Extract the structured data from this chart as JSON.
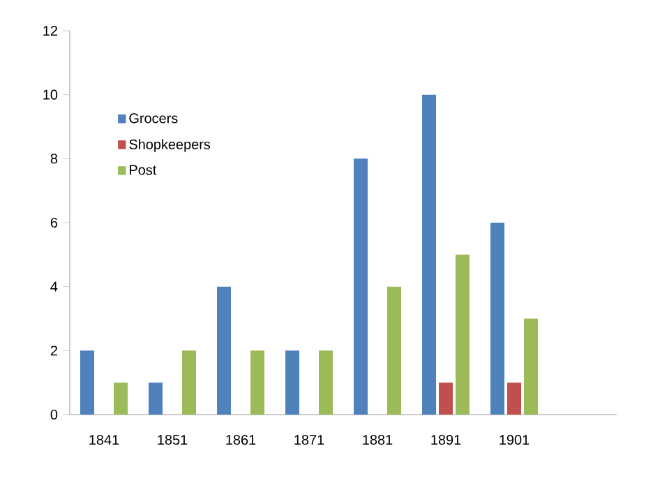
{
  "chart_data": {
    "type": "bar",
    "categories": [
      "1841",
      "1851",
      "1861",
      "1871",
      "1881",
      "1891",
      "1901",
      null
    ],
    "series": [
      {
        "name": "Grocers",
        "color": "#4f81bd",
        "values": [
          2,
          1,
          4,
          2,
          8,
          10,
          6,
          null
        ]
      },
      {
        "name": "Shopkeepers",
        "color": "#c0504d",
        "values": [
          0,
          0,
          0,
          0,
          0,
          1,
          1,
          null
        ]
      },
      {
        "name": "Post",
        "color": "#9bbb59",
        "values": [
          1,
          2,
          2,
          2,
          4,
          5,
          3,
          null
        ]
      }
    ],
    "ylim": [
      0,
      12
    ],
    "yticks": [
      0,
      2,
      4,
      6,
      8,
      10,
      12
    ],
    "grid": false,
    "legend": "top left"
  }
}
